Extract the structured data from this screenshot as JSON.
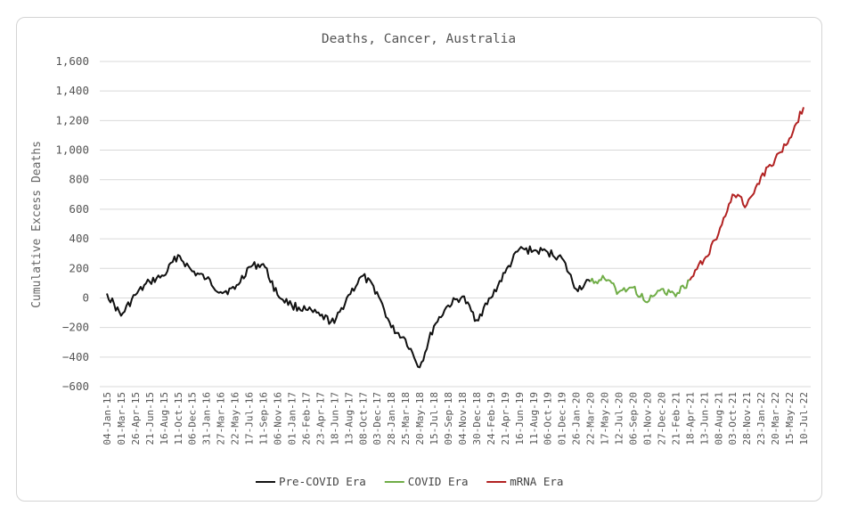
{
  "chart_data": {
    "type": "line",
    "title": "Deaths, Cancer, Australia",
    "ylabel": "Cumulative Excess Deaths",
    "xlabel": "",
    "ylim": [
      -600,
      1600
    ],
    "yticks": [
      -600,
      -400,
      -200,
      0,
      200,
      400,
      600,
      800,
      1000,
      1200,
      1400,
      1600
    ],
    "ytick_labels": [
      "−600",
      "−400",
      "−200",
      "0",
      "200",
      "400",
      "600",
      "800",
      "1,000",
      "1,200",
      "1,400",
      "1,600"
    ],
    "grid": "horizontal",
    "legend_position": "bottom-center",
    "x_tick_labels": [
      "04-Jan-15",
      "01-Mar-15",
      "26-Apr-15",
      "21-Jun-15",
      "16-Aug-15",
      "11-Oct-15",
      "06-Dec-15",
      "31-Jan-16",
      "27-Mar-16",
      "22-May-16",
      "17-Jul-16",
      "11-Sep-16",
      "06-Nov-16",
      "01-Jan-17",
      "26-Feb-17",
      "23-Apr-17",
      "18-Jun-17",
      "13-Aug-17",
      "08-Oct-17",
      "03-Dec-17",
      "28-Jan-18",
      "25-Mar-18",
      "20-May-18",
      "15-Jul-18",
      "09-Sep-18",
      "04-Nov-18",
      "30-Dec-18",
      "24-Feb-19",
      "21-Apr-19",
      "16-Jun-19",
      "11-Aug-19",
      "06-Oct-19",
      "01-Dec-19",
      "26-Jan-20",
      "22-Mar-20",
      "17-May-20",
      "12-Jul-20",
      "06-Sep-20",
      "01-Nov-20",
      "27-Dec-20",
      "21-Feb-21",
      "18-Apr-21",
      "13-Jun-21",
      "08-Aug-21",
      "03-Oct-21",
      "28-Nov-21",
      "23-Jan-22",
      "20-Mar-22",
      "15-May-22",
      "10-Jul-22"
    ],
    "series": [
      {
        "name": "Pre-COVID Era",
        "color": "#111111",
        "x": [
          "04-Jan-15",
          "01-Mar-15",
          "26-Apr-15",
          "21-Jun-15",
          "16-Aug-15",
          "11-Oct-15",
          "06-Dec-15",
          "31-Jan-16",
          "27-Mar-16",
          "22-May-16",
          "17-Jul-16",
          "11-Sep-16",
          "06-Nov-16",
          "01-Jan-17",
          "26-Feb-17",
          "23-Apr-17",
          "18-Jun-17",
          "13-Aug-17",
          "08-Oct-17",
          "03-Dec-17",
          "28-Jan-18",
          "25-Mar-18",
          "20-May-18",
          "15-Jul-18",
          "09-Sep-18",
          "04-Nov-18",
          "30-Dec-18",
          "24-Feb-19",
          "21-Apr-19",
          "16-Jun-19",
          "11-Aug-19",
          "06-Oct-19",
          "01-Dec-19",
          "26-Jan-20",
          "22-Mar-20"
        ],
        "values": [
          30,
          -120,
          20,
          110,
          150,
          290,
          180,
          130,
          40,
          60,
          210,
          230,
          20,
          -50,
          -80,
          -120,
          -170,
          20,
          150,
          40,
          -200,
          -280,
          -470,
          -190,
          -50,
          10,
          -150,
          0,
          170,
          330,
          320,
          310,
          270,
          60,
          110
        ]
      },
      {
        "name": "COVID Era",
        "color": "#70ad47",
        "x": [
          "22-Mar-20",
          "17-May-20",
          "12-Jul-20",
          "06-Sep-20",
          "01-Nov-20",
          "27-Dec-20",
          "21-Feb-21",
          "18-Apr-21"
        ],
        "values": [
          110,
          130,
          40,
          70,
          -30,
          60,
          10,
          120
        ]
      },
      {
        "name": "mRNA Era",
        "color": "#b22222",
        "x": [
          "18-Apr-21",
          "13-Jun-21",
          "08-Aug-21",
          "03-Oct-21",
          "28-Nov-21",
          "23-Jan-22",
          "20-Mar-22",
          "15-May-22",
          "10-Jul-22"
        ],
        "values": [
          120,
          260,
          430,
          700,
          630,
          820,
          940,
          1080,
          1290
        ]
      }
    ]
  }
}
